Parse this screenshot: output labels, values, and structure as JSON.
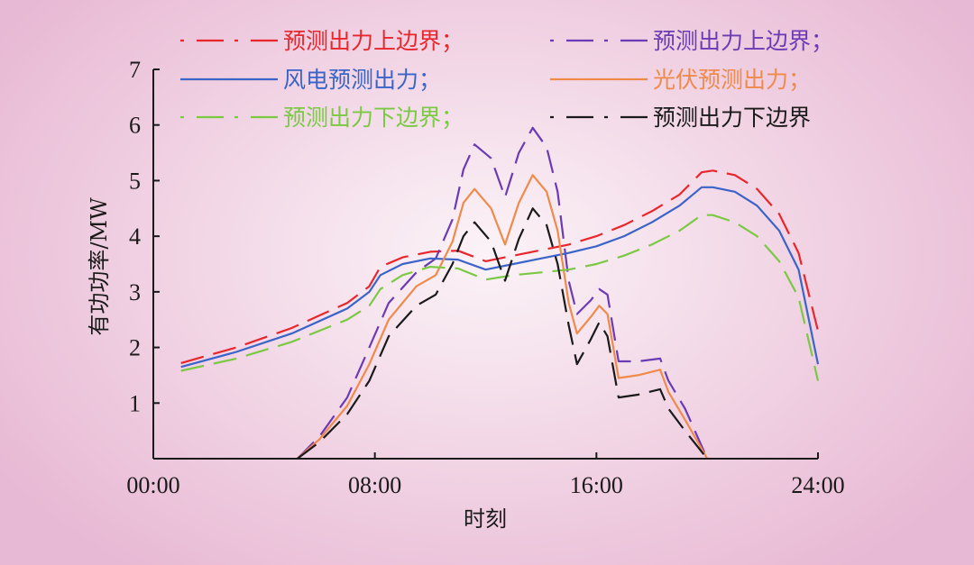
{
  "chart_data": {
    "type": "line",
    "xlabel": "时刻",
    "ylabel": "有功功率/MW",
    "xlim": [
      0,
      24
    ],
    "ylim": [
      0,
      7
    ],
    "xticks": [
      0,
      8,
      16,
      24
    ],
    "xtick_labels": [
      "00:00",
      "08:00",
      "16:00",
      "24:00"
    ],
    "yticks": [
      1,
      2,
      3,
      4,
      5,
      6,
      7
    ],
    "ytick_labels": [
      "1",
      "2",
      "3",
      "4",
      "5",
      "6",
      "7"
    ],
    "grid": false,
    "legend_position": "top",
    "series": [
      {
        "name": "预测出力上边界；",
        "color": "#e8262c",
        "dash": "long-dash",
        "x": [
          1,
          3,
          5,
          7,
          7.8,
          8.2,
          9,
          10,
          11,
          12,
          13,
          14,
          15,
          16,
          17,
          18,
          19,
          19.8,
          20.2,
          21,
          21.8,
          22.6,
          23.3,
          24
        ],
        "y": [
          1.72,
          2.0,
          2.35,
          2.8,
          3.1,
          3.45,
          3.62,
          3.72,
          3.74,
          3.55,
          3.65,
          3.75,
          3.85,
          4.0,
          4.2,
          4.45,
          4.75,
          5.15,
          5.18,
          5.1,
          4.85,
          4.4,
          3.7,
          2.3
        ]
      },
      {
        "name": "预测出力上边界；",
        "color": "#6a3bb5",
        "dash": "long-dash",
        "x": [
          5.2,
          6,
          7,
          7.8,
          8.5,
          9.5,
          10.2,
          10.8,
          11.2,
          11.6,
          12.2,
          12.7,
          13.2,
          13.7,
          14.2,
          14.6,
          15,
          15.3,
          15.8,
          16.1,
          16.4,
          16.8,
          17.5,
          18.3,
          18.6,
          19.2,
          20
        ],
        "y": [
          0,
          0.4,
          1.1,
          2.0,
          2.8,
          3.35,
          3.6,
          4.3,
          5.2,
          5.65,
          5.4,
          4.7,
          5.5,
          5.95,
          5.6,
          4.8,
          3.2,
          2.6,
          2.85,
          3.05,
          2.95,
          1.75,
          1.75,
          1.8,
          1.4,
          0.9,
          0
        ]
      },
      {
        "name": "风电预测出力；",
        "color": "#3b64c9",
        "dash": "solid",
        "x": [
          1,
          3,
          5,
          7,
          7.8,
          8.2,
          9,
          10,
          11,
          12,
          13,
          14,
          15,
          16,
          17,
          18,
          19,
          19.8,
          20.2,
          21,
          21.8,
          22.6,
          23.3,
          24
        ],
        "y": [
          1.65,
          1.92,
          2.25,
          2.7,
          3.0,
          3.3,
          3.5,
          3.6,
          3.58,
          3.4,
          3.5,
          3.6,
          3.7,
          3.82,
          4.0,
          4.25,
          4.55,
          4.88,
          4.88,
          4.8,
          4.55,
          4.1,
          3.4,
          1.7
        ]
      },
      {
        "name": "光伏预测出力；",
        "color": "#f08a4b",
        "dash": "solid",
        "x": [
          5.2,
          6,
          7,
          7.8,
          8.5,
          9.5,
          10.2,
          10.8,
          11.2,
          11.6,
          12.2,
          12.7,
          13.2,
          13.7,
          14.2,
          14.6,
          15,
          15.3,
          15.8,
          16.1,
          16.4,
          16.8,
          17.5,
          18.3,
          18.6,
          19.2,
          20
        ],
        "y": [
          0,
          0.35,
          0.95,
          1.7,
          2.5,
          3.1,
          3.3,
          3.9,
          4.6,
          4.85,
          4.5,
          3.85,
          4.6,
          5.1,
          4.8,
          4.1,
          2.8,
          2.25,
          2.55,
          2.75,
          2.6,
          1.45,
          1.5,
          1.6,
          1.2,
          0.7,
          0
        ]
      },
      {
        "name": "预测出力下边界；",
        "color": "#7bc943",
        "dash": "long-dash",
        "x": [
          1,
          3,
          5,
          7,
          7.8,
          8.2,
          9,
          10,
          11,
          12,
          13,
          14,
          15,
          16,
          17,
          18,
          19,
          19.8,
          20.2,
          21,
          21.8,
          22.6,
          23.3,
          24
        ],
        "y": [
          1.58,
          1.8,
          2.1,
          2.5,
          2.75,
          3.05,
          3.3,
          3.45,
          3.42,
          3.22,
          3.3,
          3.35,
          3.4,
          3.5,
          3.65,
          3.85,
          4.1,
          4.38,
          4.38,
          4.25,
          4.0,
          3.55,
          2.9,
          1.4
        ]
      },
      {
        "name": "预测出力下边界",
        "color": "#1a1a1a",
        "dash": "long-dash",
        "x": [
          5.2,
          6,
          7,
          7.8,
          8.5,
          9.5,
          10.2,
          10.8,
          11.2,
          11.6,
          12.2,
          12.7,
          13.2,
          13.7,
          14.2,
          14.6,
          15,
          15.3,
          15.8,
          16.1,
          16.4,
          16.8,
          17.5,
          18.3,
          18.6,
          19.2,
          20
        ],
        "y": [
          0,
          0.3,
          0.8,
          1.4,
          2.2,
          2.75,
          2.95,
          3.5,
          4.0,
          4.25,
          3.9,
          3.2,
          3.95,
          4.5,
          4.2,
          3.5,
          2.4,
          1.7,
          2.15,
          2.45,
          2.2,
          1.1,
          1.15,
          1.25,
          0.9,
          0.5,
          0
        ]
      }
    ]
  }
}
